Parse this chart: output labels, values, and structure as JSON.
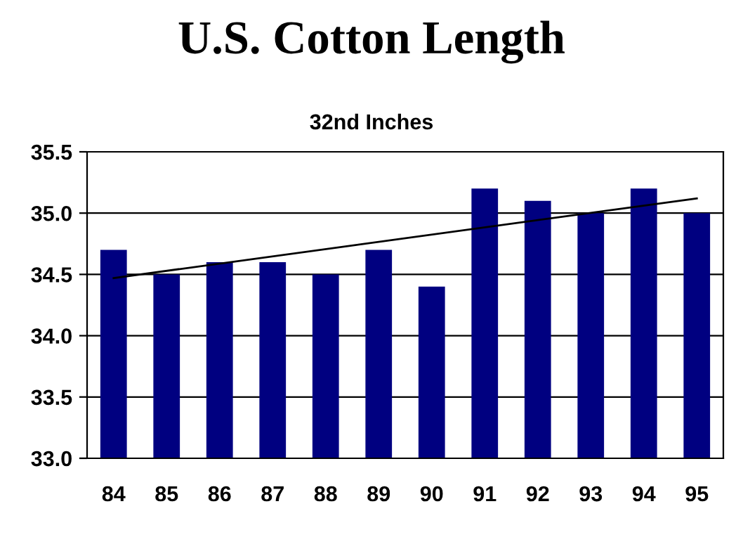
{
  "chart_data": {
    "type": "bar",
    "title": "U.S. Cotton Length",
    "subtitle": "32nd Inches",
    "categories": [
      "84",
      "85",
      "86",
      "87",
      "88",
      "89",
      "90",
      "91",
      "92",
      "93",
      "94",
      "95"
    ],
    "series": [
      {
        "color": "#000080",
        "values": [
          34.7,
          34.5,
          34.6,
          34.6,
          34.5,
          34.7,
          34.4,
          35.2,
          35.1,
          35.0,
          35.2,
          35.0
        ]
      },
      {
        "type": "line",
        "color": "#000000",
        "x": [
          "84",
          "95"
        ],
        "values": [
          34.47,
          35.12
        ]
      }
    ],
    "ylim": [
      33.0,
      35.5
    ],
    "yticks": [
      {
        "value": 33.0,
        "label": "33.0"
      },
      {
        "value": 33.5,
        "label": "33.5"
      },
      {
        "value": 34.0,
        "label": "34.0"
      },
      {
        "value": 34.5,
        "label": "34.5"
      },
      {
        "value": 35.0,
        "label": "35.0"
      },
      {
        "value": 35.5,
        "label": "35.5"
      }
    ],
    "grid": "y",
    "legend": false
  }
}
